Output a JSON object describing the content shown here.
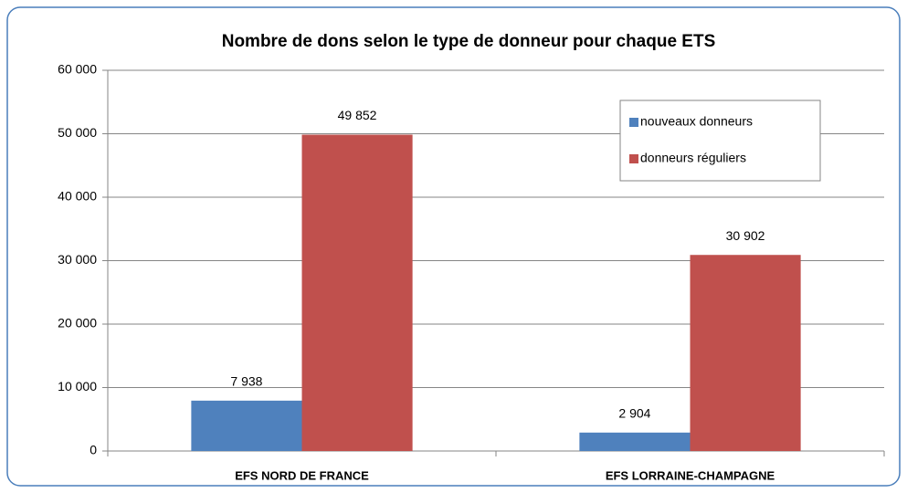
{
  "chart_data": {
    "type": "bar",
    "title": "Nombre de dons selon le type de donneur pour chaque ETS",
    "categories": [
      "EFS NORD DE FRANCE",
      "EFS LORRAINE-CHAMPAGNE"
    ],
    "series": [
      {
        "name": "nouveaux donneurs",
        "color": "#4f81bd",
        "values": [
          7938,
          2904
        ],
        "value_labels": [
          "7 938",
          "2 904"
        ]
      },
      {
        "name": "donneurs réguliers",
        "color": "#c0504d",
        "values": [
          49852,
          30902
        ],
        "value_labels": [
          "49 852",
          "30 902"
        ]
      }
    ],
    "ylim": [
      0,
      60000
    ],
    "yticks": [
      {
        "value": 0,
        "label": "0"
      },
      {
        "value": 10000,
        "label": "10 000"
      },
      {
        "value": 20000,
        "label": "20 000"
      },
      {
        "value": 30000,
        "label": "30 000"
      },
      {
        "value": 40000,
        "label": "40 000"
      },
      {
        "value": 50000,
        "label": "50 000"
      },
      {
        "value": 60000,
        "label": "60 000"
      }
    ],
    "grid": true,
    "legend": "upper right"
  }
}
